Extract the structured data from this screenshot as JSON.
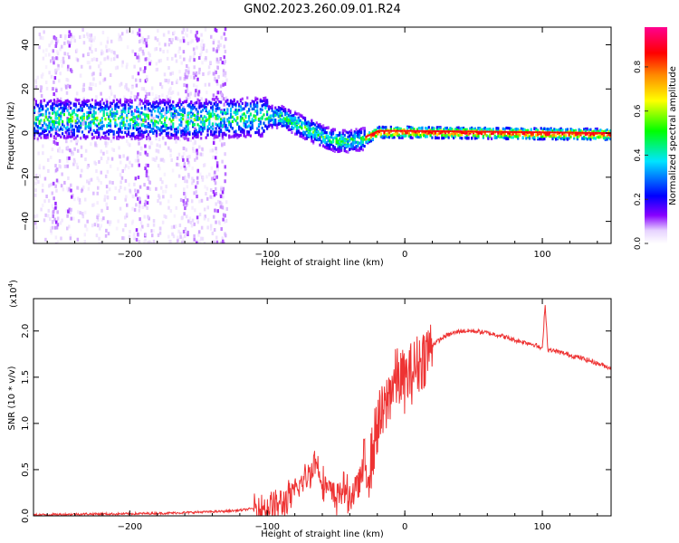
{
  "title": "GN02.2023.260.09.01.R24",
  "chart_data": [
    {
      "type": "heatmap",
      "xlabel": "Height of straight line (km)",
      "ylabel": "Frequency (Hz)",
      "xlim": [
        -270,
        150
      ],
      "ylim": [
        -50,
        48
      ],
      "x_ticks": [
        -200,
        -100,
        0,
        100
      ],
      "y_ticks": [
        -40,
        -20,
        0,
        20,
        40
      ],
      "colorbar": {
        "label": "Normalized spectral amplitude",
        "range": [
          0.0,
          0.98
        ],
        "ticks": [
          0.0,
          0.2,
          0.4,
          0.6,
          0.8
        ],
        "colormap": [
          "#ffffff",
          "#e6d2ff",
          "#8800ff",
          "#0000ff",
          "#00e5ff",
          "#00ff00",
          "#ffff00",
          "#ff8800",
          "#ff0000",
          "#ff0090"
        ]
      },
      "ridge": [
        {
          "x": -270,
          "y": 7
        },
        {
          "x": -200,
          "y": 7
        },
        {
          "x": -150,
          "y": 7
        },
        {
          "x": -100,
          "y": 8
        },
        {
          "x": -90,
          "y": 8
        },
        {
          "x": -80,
          "y": 5
        },
        {
          "x": -70,
          "y": 2
        },
        {
          "x": -60,
          "y": -1
        },
        {
          "x": -50,
          "y": -3
        },
        {
          "x": -40,
          "y": -3
        },
        {
          "x": -30,
          "y": -2
        },
        {
          "x": -20,
          "y": 1
        },
        {
          "x": -10,
          "y": 1
        },
        {
          "x": 0,
          "y": 1
        },
        {
          "x": 150,
          "y": 0
        }
      ]
    },
    {
      "type": "line",
      "xlabel": "Height of straight line (km)",
      "ylabel": "SNR (10 * v/v)",
      "multiplier": "(x10",
      "multiplier_exp": "4",
      "multiplier_close": ")",
      "xlim": [
        -270,
        150
      ],
      "ylim": [
        0,
        2.35
      ],
      "x_ticks": [
        -200,
        -100,
        0,
        100
      ],
      "y_ticks": [
        0.0,
        0.5,
        1.0,
        1.5,
        2.0
      ],
      "color": "#ee3333",
      "series": [
        {
          "x": [
            -270,
            -250,
            -230,
            -210,
            -190,
            -170,
            -150,
            -130,
            -120,
            -110,
            -100,
            -90,
            -80,
            -70,
            -65,
            -60,
            -55,
            -50,
            -45,
            -40,
            -35,
            -30,
            -25,
            -20,
            -15,
            -10,
            -5,
            0,
            10,
            20,
            30,
            40,
            50,
            60,
            70,
            80,
            90,
            95,
            100,
            102,
            104,
            110,
            120,
            130,
            140,
            150
          ],
          "values": [
            0.01,
            0.015,
            0.02,
            0.02,
            0.025,
            0.03,
            0.04,
            0.05,
            0.06,
            0.08,
            0.1,
            0.12,
            0.25,
            0.45,
            0.6,
            0.4,
            0.25,
            0.2,
            0.3,
            0.2,
            0.3,
            0.5,
            0.55,
            1.0,
            1.1,
            1.4,
            1.5,
            1.45,
            1.65,
            1.85,
            1.95,
            2.0,
            2.0,
            1.98,
            1.95,
            1.9,
            1.87,
            1.85,
            1.8,
            2.3,
            1.8,
            1.78,
            1.74,
            1.7,
            1.65,
            1.6
          ]
        }
      ]
    }
  ]
}
